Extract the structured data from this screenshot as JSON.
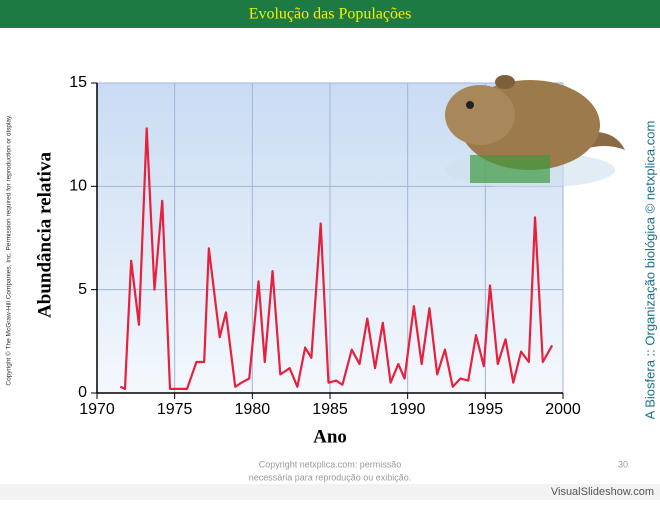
{
  "slide_title": "Evolução das Populações",
  "copyright_left": "Copyright © The McGraw-Hill Companies, Inc. Permission required for reproduction or display.",
  "credit_right": "A Biosfera :: Organização biológica © netxplica.com",
  "footer_lines": [
    "Copyright netxplica.com: permissão",
    "necessária para reprodução ou exibição."
  ],
  "page_number": "30",
  "watermark": "VisualSlideshow.com",
  "chart_data": {
    "type": "line",
    "xlabel": "Ano",
    "ylabel": "Abundância relativa",
    "x": [
      1971.5,
      1971.8,
      1972.2,
      1972.7,
      1973.2,
      1973.7,
      1974.2,
      1974.7,
      1975.8,
      1976.4,
      1976.9,
      1977.2,
      1977.9,
      1978.3,
      1978.9,
      1979.3,
      1979.8,
      1980.4,
      1980.8,
      1981.3,
      1981.8,
      1982.4,
      1982.9,
      1983.4,
      1983.8,
      1984.4,
      1984.9,
      1985.4,
      1985.8,
      1986.4,
      1986.9,
      1987.4,
      1987.9,
      1988.4,
      1988.9,
      1989.4,
      1989.8,
      1990.4,
      1990.9,
      1991.4,
      1991.9,
      1992.4,
      1992.9,
      1993.4,
      1993.9,
      1994.4,
      1994.9,
      1995.3,
      1995.8,
      1996.3,
      1996.8,
      1997.3,
      1997.8,
      1998.2,
      1998.7,
      1999.3
    ],
    "y": [
      0.3,
      0.2,
      6.4,
      3.3,
      12.8,
      5.0,
      9.3,
      0.2,
      0.2,
      1.5,
      1.5,
      7.0,
      2.7,
      3.9,
      0.3,
      0.5,
      0.7,
      5.4,
      1.5,
      5.9,
      0.9,
      1.2,
      0.3,
      2.2,
      1.7,
      8.2,
      0.5,
      0.6,
      0.4,
      2.1,
      1.4,
      3.6,
      1.2,
      3.4,
      0.5,
      1.4,
      0.7,
      4.2,
      1.4,
      4.1,
      0.9,
      2.1,
      0.3,
      0.7,
      0.6,
      2.8,
      1.3,
      5.2,
      1.4,
      2.6,
      0.5,
      2.0,
      1.5,
      8.5,
      1.5,
      2.3
    ],
    "color": "#e8203c",
    "xlim": [
      1970,
      2000
    ],
    "xticks": [
      1970,
      1975,
      1980,
      1985,
      1990,
      1995,
      2000
    ],
    "ylim": [
      0,
      15
    ],
    "yticks": [
      0,
      5,
      10,
      15
    ],
    "grid": true
  }
}
